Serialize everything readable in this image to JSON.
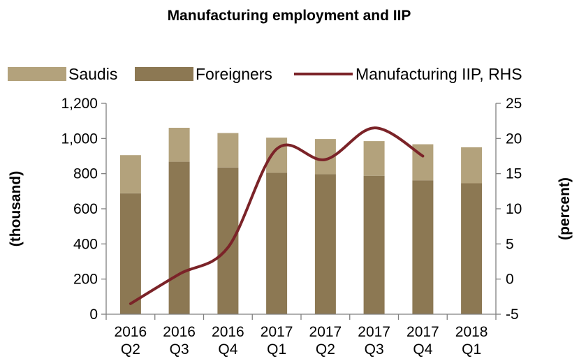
{
  "chart_data": {
    "type": "bar",
    "title": "Manufacturing employment and IIP",
    "categories": [
      [
        "2016",
        "Q2"
      ],
      [
        "2016",
        "Q3"
      ],
      [
        "2016",
        "Q4"
      ],
      [
        "2017",
        "Q1"
      ],
      [
        "2017",
        "Q2"
      ],
      [
        "2017",
        "Q3"
      ],
      [
        "2017",
        "Q4"
      ],
      [
        "2018",
        "Q1"
      ]
    ],
    "stacked": true,
    "series": [
      {
        "name": "Foreigners",
        "kind": "bar",
        "color": "#8c7853",
        "axis": "left",
        "values": [
          688,
          868,
          835,
          805,
          797,
          788,
          762,
          745
        ]
      },
      {
        "name": "Saudis",
        "kind": "bar",
        "color": "#b3a27c",
        "axis": "left",
        "values": [
          217,
          193,
          196,
          200,
          200,
          197,
          205,
          205
        ]
      },
      {
        "name": "Manufacturing IIP, RHS",
        "kind": "line",
        "color": "#7b2328",
        "axis": "right",
        "values": [
          -3.5,
          0.7,
          4.5,
          18.5,
          17.0,
          21.5,
          17.5,
          null
        ]
      }
    ],
    "legend_order": [
      "Saudis",
      "Foreigners",
      "Manufacturing IIP, RHS"
    ],
    "legend_position": "top",
    "ylabel": "(thousand)",
    "ylabel_right": "(percent)",
    "ylim": [
      0,
      1200
    ],
    "yticks": [
      "0",
      "200",
      "400",
      "600",
      "800",
      "1,000",
      "1,200"
    ],
    "ylim_right": [
      -5,
      25
    ],
    "yticks_right": [
      "-5",
      "0",
      "5",
      "10",
      "15",
      "20",
      "25"
    ],
    "grid": false
  }
}
